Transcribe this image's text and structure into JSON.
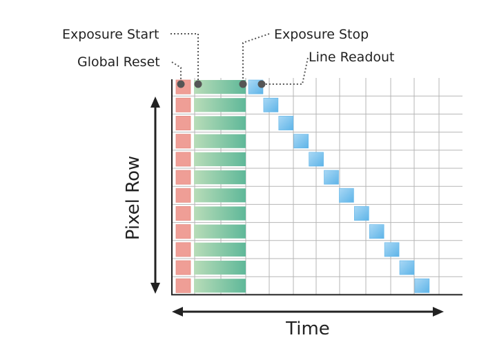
{
  "labels": {
    "exposure_start": "Exposure Start",
    "exposure_stop": "Exposure Stop",
    "global_reset": "Global Reset",
    "line_readout": "Line Readout",
    "vertical_axis": "Pixel Row",
    "horizontal_axis": "Time"
  },
  "diagram": {
    "row_count": 12,
    "phases": [
      "global-reset",
      "exposure",
      "line-readout"
    ],
    "colors": {
      "reset_fill": "#ef9e96",
      "reset_edge": "#e58d84",
      "exposure_fill_start": "#b8dcb8",
      "exposure_fill_end": "#5fb899",
      "readout_fill": "#5eb4e8",
      "readout_edge": "#a9d8f5",
      "grid": "#b5b5b5",
      "axis": "#222222",
      "marker": "#555555"
    }
  }
}
